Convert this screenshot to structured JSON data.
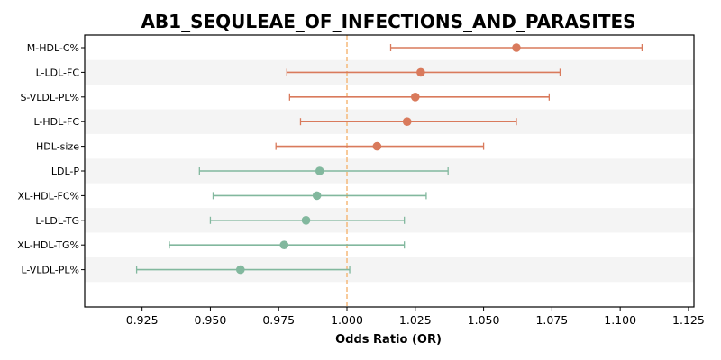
{
  "chart_data": {
    "type": "forest",
    "title": "AB1_SEQULEAE_OF_INFECTIONS_AND_PARASITES",
    "xlabel": "Odds Ratio (OR)",
    "xlim": [
      0.904,
      1.127
    ],
    "xticks": [
      "0.925",
      "0.950",
      "0.975",
      "1.000",
      "1.025",
      "1.050",
      "1.075",
      "1.100",
      "1.125"
    ],
    "reference_line": 1.0,
    "grid": false,
    "colors": {
      "positive": "#d97a5c",
      "negative": "#82b89e",
      "reference": "#f5b97a",
      "band": "#f4f4f4"
    },
    "rows": [
      {
        "label": "M-HDL-C%",
        "or": 1.062,
        "lo": 1.016,
        "hi": 1.108
      },
      {
        "label": "L-LDL-FC",
        "or": 1.027,
        "lo": 0.978,
        "hi": 1.078
      },
      {
        "label": "S-VLDL-PL%",
        "or": 1.025,
        "lo": 0.979,
        "hi": 1.074
      },
      {
        "label": "L-HDL-FC",
        "or": 1.022,
        "lo": 0.983,
        "hi": 1.062
      },
      {
        "label": "HDL-size",
        "or": 1.011,
        "lo": 0.974,
        "hi": 1.05
      },
      {
        "label": "LDL-P",
        "or": 0.99,
        "lo": 0.946,
        "hi": 1.037
      },
      {
        "label": "XL-HDL-FC%",
        "or": 0.989,
        "lo": 0.951,
        "hi": 1.029
      },
      {
        "label": "L-LDL-TG",
        "or": 0.985,
        "lo": 0.95,
        "hi": 1.021
      },
      {
        "label": "XL-HDL-TG%",
        "or": 0.977,
        "lo": 0.935,
        "hi": 1.021
      },
      {
        "label": "L-VLDL-PL%",
        "or": 0.961,
        "lo": 0.923,
        "hi": 1.001
      }
    ]
  }
}
